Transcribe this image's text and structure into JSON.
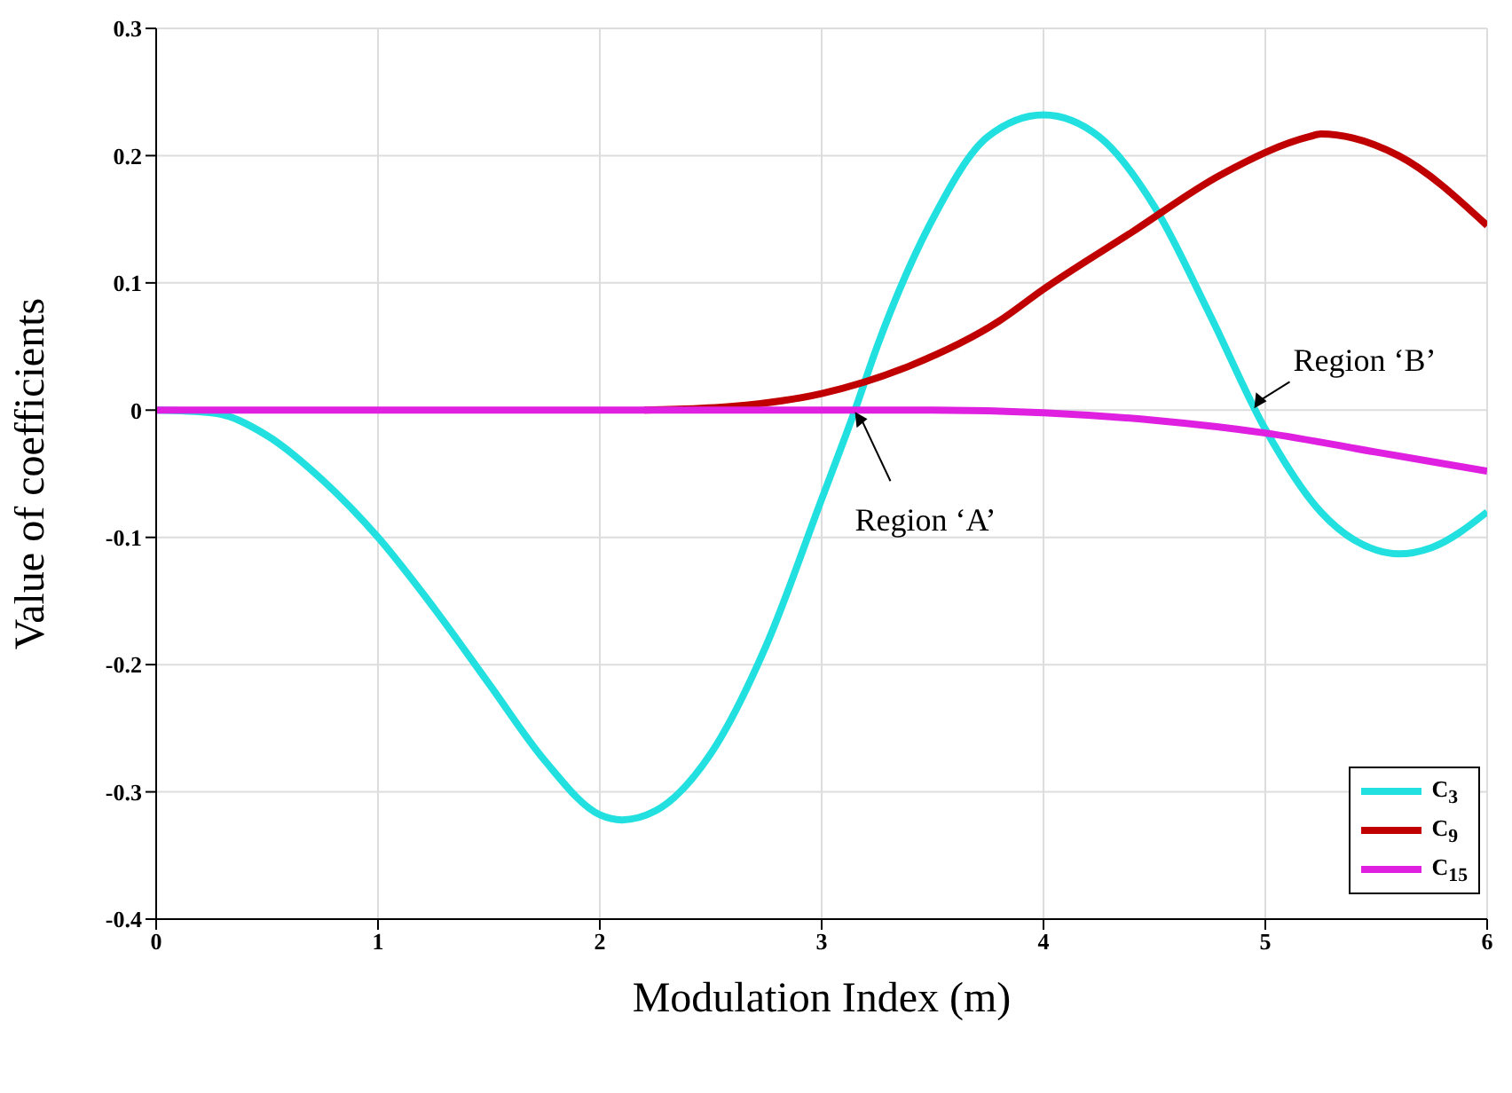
{
  "chart_data": {
    "type": "line",
    "xlabel": "Modulation Index (m)",
    "ylabel": "Value of coefficients",
    "xlim": [
      0,
      6
    ],
    "xticks": [
      0,
      1,
      2,
      3,
      4,
      5,
      6
    ],
    "ylim": [
      -0.4,
      0.3
    ],
    "yticks": [
      -0.4,
      -0.3,
      -0.2,
      -0.1,
      0,
      0.1,
      0.2,
      0.3
    ],
    "grid": true,
    "legend": "bottom right",
    "marker": "none",
    "line_style": "solid",
    "series": [
      {
        "name": "C$_{3}$",
        "color": "#22e0e0",
        "x": [
          0,
          0.25,
          0.5,
          0.75,
          1,
          1.25,
          1.5,
          1.75,
          2,
          2.1,
          2.25,
          2.5,
          2.75,
          3,
          3.15,
          3.25,
          3.5,
          3.75,
          4,
          4.25,
          4.5,
          4.75,
          5,
          5.25,
          5.5,
          5.6,
          5.75,
          6
        ],
        "values": [
          0,
          -0.002,
          -0.02,
          -0.055,
          -0.1,
          -0.155,
          -0.215,
          -0.275,
          -0.318,
          -0.322,
          -0.315,
          -0.27,
          -0.185,
          -0.07,
          0,
          0.05,
          0.15,
          0.215,
          0.232,
          0.215,
          0.16,
          0.075,
          -0.015,
          -0.08,
          -0.11,
          -0.113,
          -0.108,
          -0.08
        ]
      },
      {
        "name": "C$_{9}$",
        "color": "#c00000",
        "x": [
          2.2,
          2.6,
          3,
          3.4,
          3.8,
          4,
          4.4,
          4.8,
          5.2,
          5.25,
          5.6,
          6
        ],
        "values": [
          0,
          0.003,
          0.013,
          0.035,
          0.07,
          0.095,
          0.14,
          0.185,
          0.215,
          0.217,
          0.2,
          0.145
        ]
      },
      {
        "name": "C$_{15}$",
        "color": "#e020e0",
        "x": [
          0,
          1,
          2,
          3,
          3.5,
          4,
          4.5,
          5,
          5.5,
          6
        ],
        "values": [
          0,
          0,
          0,
          0,
          0,
          -0.002,
          -0.008,
          -0.018,
          -0.033,
          -0.048
        ]
      }
    ],
    "annotations": [
      {
        "text": "Region ‘A’",
        "x": 3.15,
        "y": 0
      },
      {
        "text": "Region ‘B’",
        "x": 4.95,
        "y": 0
      }
    ]
  }
}
